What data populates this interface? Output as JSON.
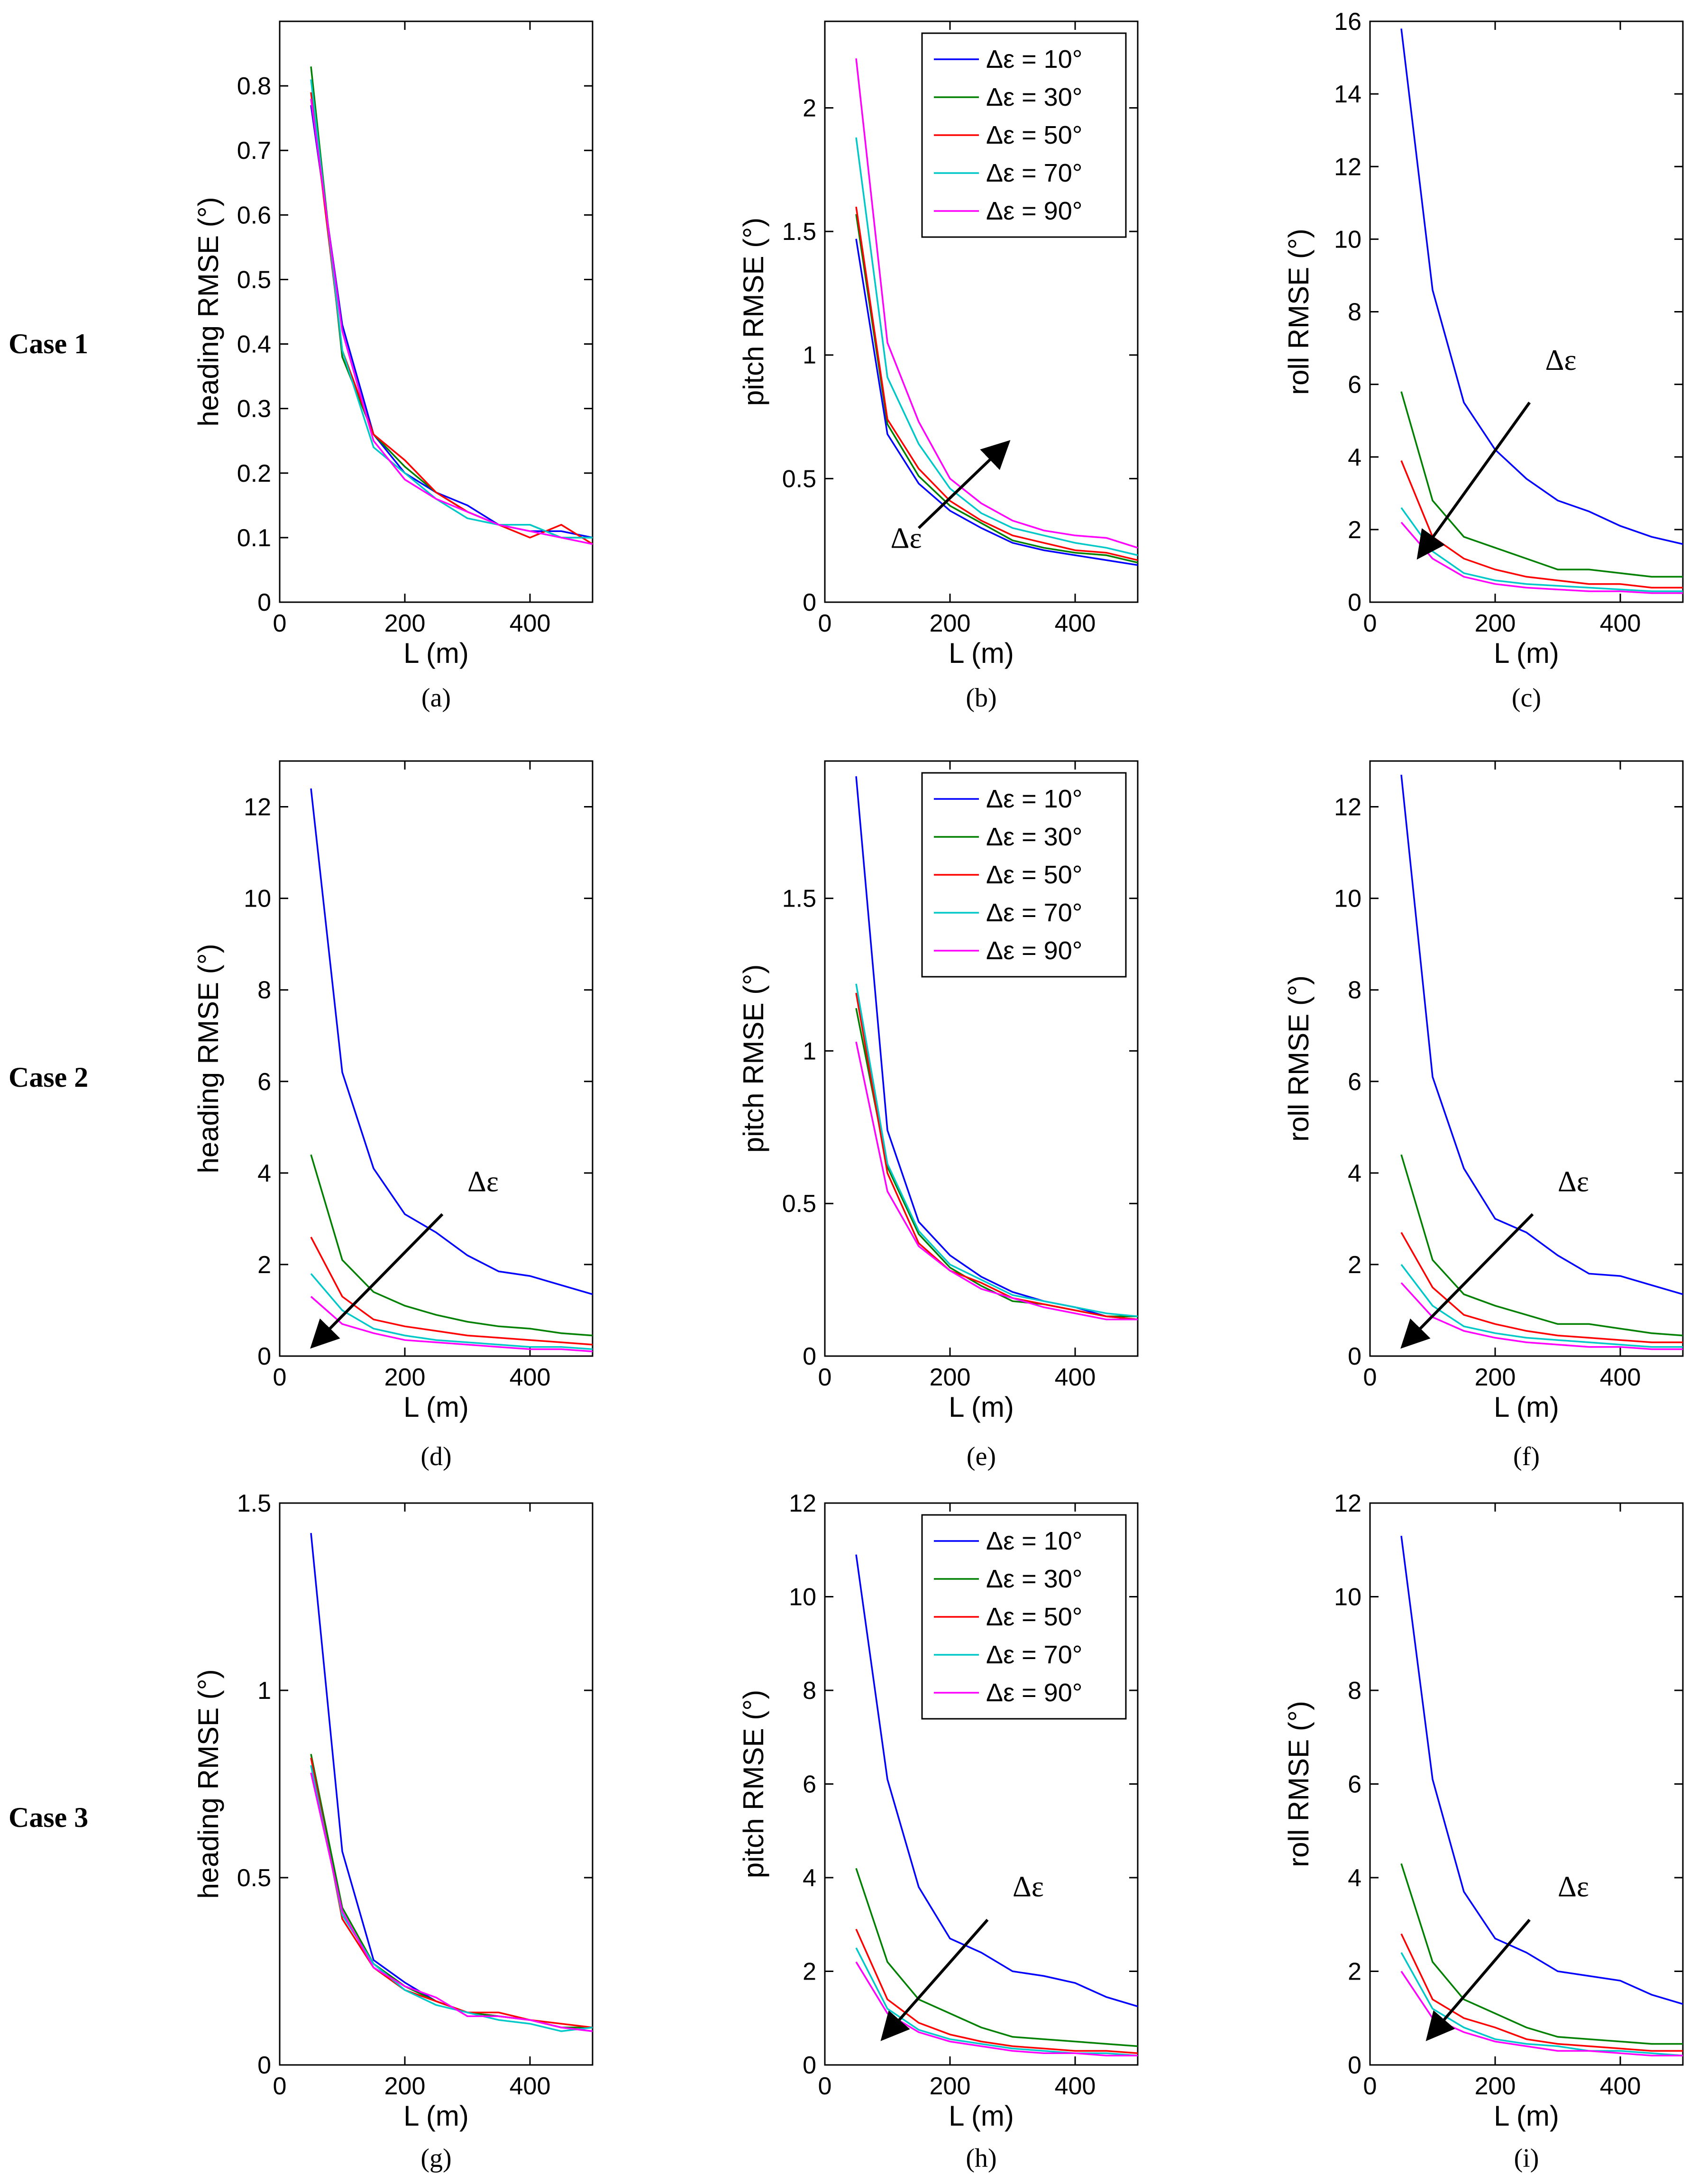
{
  "figure": {
    "case_labels": [
      "Case 1",
      "Case 2",
      "Case 3"
    ],
    "legend_labels": [
      "Δε = 10°",
      "Δε = 30°",
      "Δε = 50°",
      "Δε = 70°",
      "Δε = 90°"
    ],
    "arrow_label": "Δε"
  },
  "colors": {
    "s10": "#0000ff",
    "s30": "#008000",
    "s50": "#ff0000",
    "s70": "#00c8c8",
    "s90": "#ff00ff"
  },
  "chart_data": [
    {
      "id": "a",
      "panel_label": "(a)",
      "type": "line",
      "xlabel": "L (m)",
      "ylabel": "heading RMSE (°)",
      "xlim": [
        0,
        500
      ],
      "ylim": [
        0,
        0.9
      ],
      "xticks": [
        0,
        200,
        400
      ],
      "yticks": [
        0,
        0.1,
        0.2,
        0.3,
        0.4,
        0.5,
        0.6,
        0.7,
        0.8
      ],
      "ytick_labels": [
        "0",
        "0.1",
        "0.2",
        "0.3",
        "0.4",
        "0.5",
        "0.6",
        "0.7",
        "0.8"
      ],
      "x": [
        50,
        100,
        150,
        200,
        250,
        300,
        350,
        400,
        450,
        500
      ],
      "series": [
        {
          "name": "Δε = 10°",
          "values": [
            0.77,
            0.43,
            0.26,
            0.2,
            0.17,
            0.15,
            0.12,
            0.11,
            0.11,
            0.1
          ]
        },
        {
          "name": "Δε = 30°",
          "values": [
            0.83,
            0.38,
            0.26,
            0.21,
            0.17,
            0.14,
            0.12,
            0.12,
            0.1,
            0.1
          ]
        },
        {
          "name": "Δε = 50°",
          "values": [
            0.79,
            0.39,
            0.26,
            0.22,
            0.17,
            0.14,
            0.12,
            0.1,
            0.12,
            0.09
          ]
        },
        {
          "name": "Δε = 70°",
          "values": [
            0.81,
            0.39,
            0.24,
            0.2,
            0.16,
            0.13,
            0.12,
            0.12,
            0.1,
            0.1
          ]
        },
        {
          "name": "Δε = 90°",
          "values": [
            0.78,
            0.42,
            0.25,
            0.19,
            0.16,
            0.14,
            0.12,
            0.11,
            0.1,
            0.09
          ]
        }
      ],
      "legend": false,
      "arrow": null
    },
    {
      "id": "b",
      "panel_label": "(b)",
      "type": "line",
      "xlabel": "L (m)",
      "ylabel": "pitch RMSE (°)",
      "xlim": [
        0,
        500
      ],
      "ylim": [
        0,
        2.35
      ],
      "xticks": [
        0,
        200,
        400
      ],
      "yticks": [
        0,
        0.5,
        1,
        1.5,
        2
      ],
      "ytick_labels": [
        "0",
        "0.5",
        "1",
        "1.5",
        "2"
      ],
      "x": [
        50,
        100,
        150,
        200,
        250,
        300,
        350,
        400,
        450,
        500
      ],
      "series": [
        {
          "name": "Δε = 10°",
          "values": [
            1.47,
            0.68,
            0.48,
            0.37,
            0.3,
            0.24,
            0.21,
            0.19,
            0.17,
            0.15
          ]
        },
        {
          "name": "Δε = 30°",
          "values": [
            1.57,
            0.72,
            0.51,
            0.39,
            0.32,
            0.25,
            0.22,
            0.2,
            0.19,
            0.16
          ]
        },
        {
          "name": "Δε = 50°",
          "values": [
            1.6,
            0.74,
            0.54,
            0.41,
            0.33,
            0.27,
            0.24,
            0.21,
            0.2,
            0.17
          ]
        },
        {
          "name": "Δε = 70°",
          "values": [
            1.88,
            0.91,
            0.64,
            0.46,
            0.36,
            0.3,
            0.27,
            0.24,
            0.22,
            0.19
          ]
        },
        {
          "name": "Δε = 90°",
          "values": [
            2.2,
            1.05,
            0.73,
            0.5,
            0.4,
            0.33,
            0.29,
            0.27,
            0.26,
            0.22
          ]
        }
      ],
      "legend": "top-right",
      "arrow": {
        "from": [
          150,
          0.3
        ],
        "to": [
          290,
          0.64
        ],
        "label_at": [
          105,
          0.22
        ]
      }
    },
    {
      "id": "c",
      "panel_label": "(c)",
      "type": "line",
      "xlabel": "L (m)",
      "ylabel": "roll RMSE (°)",
      "xlim": [
        0,
        500
      ],
      "ylim": [
        0,
        16
      ],
      "xticks": [
        0,
        200,
        400
      ],
      "yticks": [
        0,
        2,
        4,
        6,
        8,
        10,
        12,
        14,
        16
      ],
      "ytick_labels": [
        "0",
        "2",
        "4",
        "6",
        "8",
        "10",
        "12",
        "14",
        "16"
      ],
      "x": [
        50,
        100,
        150,
        200,
        250,
        300,
        350,
        400,
        450,
        500
      ],
      "series": [
        {
          "name": "Δε = 10°",
          "values": [
            15.8,
            8.6,
            5.5,
            4.2,
            3.4,
            2.8,
            2.5,
            2.1,
            1.8,
            1.6
          ]
        },
        {
          "name": "Δε = 30°",
          "values": [
            5.8,
            2.8,
            1.8,
            1.5,
            1.2,
            0.9,
            0.9,
            0.8,
            0.7,
            0.7
          ]
        },
        {
          "name": "Δε = 50°",
          "values": [
            3.9,
            1.8,
            1.2,
            0.9,
            0.7,
            0.6,
            0.5,
            0.5,
            0.4,
            0.4
          ]
        },
        {
          "name": "Δε = 70°",
          "values": [
            2.6,
            1.4,
            0.8,
            0.6,
            0.5,
            0.45,
            0.4,
            0.35,
            0.3,
            0.3
          ]
        },
        {
          "name": "Δε = 90°",
          "values": [
            2.2,
            1.2,
            0.7,
            0.5,
            0.4,
            0.35,
            0.3,
            0.3,
            0.25,
            0.25
          ]
        }
      ],
      "legend": false,
      "arrow": {
        "from": [
          255,
          5.5
        ],
        "to": [
          80,
          1.3
        ],
        "label_at": [
          280,
          6.4
        ]
      }
    },
    {
      "id": "d",
      "panel_label": "(d)",
      "type": "line",
      "xlabel": "L (m)",
      "ylabel": "heading RMSE (°)",
      "xlim": [
        0,
        500
      ],
      "ylim": [
        0,
        13
      ],
      "xticks": [
        0,
        200,
        400
      ],
      "yticks": [
        0,
        2,
        4,
        6,
        8,
        10,
        12
      ],
      "ytick_labels": [
        "0",
        "2",
        "4",
        "6",
        "8",
        "10",
        "12"
      ],
      "x": [
        50,
        100,
        150,
        200,
        250,
        300,
        350,
        400,
        450,
        500
      ],
      "series": [
        {
          "name": "Δε = 10°",
          "values": [
            12.4,
            6.2,
            4.1,
            3.1,
            2.7,
            2.2,
            1.85,
            1.75,
            1.55,
            1.35
          ]
        },
        {
          "name": "Δε = 30°",
          "values": [
            4.4,
            2.1,
            1.4,
            1.1,
            0.9,
            0.75,
            0.65,
            0.6,
            0.5,
            0.45
          ]
        },
        {
          "name": "Δε = 50°",
          "values": [
            2.6,
            1.3,
            0.8,
            0.65,
            0.55,
            0.45,
            0.4,
            0.35,
            0.3,
            0.25
          ]
        },
        {
          "name": "Δε = 70°",
          "values": [
            1.8,
            1.0,
            0.6,
            0.45,
            0.35,
            0.3,
            0.25,
            0.2,
            0.2,
            0.15
          ]
        },
        {
          "name": "Δε = 90°",
          "values": [
            1.3,
            0.7,
            0.5,
            0.35,
            0.3,
            0.25,
            0.2,
            0.15,
            0.15,
            0.1
          ]
        }
      ],
      "legend": false,
      "arrow": {
        "from": [
          260,
          3.1
        ],
        "to": [
          55,
          0.25
        ],
        "label_at": [
          300,
          3.6
        ]
      }
    },
    {
      "id": "e",
      "panel_label": "(e)",
      "type": "line",
      "xlabel": "L (m)",
      "ylabel": "pitch RMSE (°)",
      "xlim": [
        0,
        500
      ],
      "ylim": [
        0,
        1.95
      ],
      "xticks": [
        0,
        200,
        400
      ],
      "yticks": [
        0,
        0.5,
        1,
        1.5
      ],
      "ytick_labels": [
        "0",
        "0.5",
        "1",
        "1.5"
      ],
      "x": [
        50,
        100,
        150,
        200,
        250,
        300,
        350,
        400,
        450,
        500
      ],
      "series": [
        {
          "name": "Δε = 10°",
          "values": [
            1.9,
            0.74,
            0.44,
            0.33,
            0.26,
            0.21,
            0.18,
            0.16,
            0.13,
            0.12
          ]
        },
        {
          "name": "Δε = 30°",
          "values": [
            1.14,
            0.62,
            0.4,
            0.29,
            0.23,
            0.18,
            0.17,
            0.15,
            0.13,
            0.13
          ]
        },
        {
          "name": "Δε = 50°",
          "values": [
            1.19,
            0.6,
            0.37,
            0.28,
            0.24,
            0.19,
            0.17,
            0.15,
            0.13,
            0.12
          ]
        },
        {
          "name": "Δε = 70°",
          "values": [
            1.22,
            0.63,
            0.41,
            0.3,
            0.25,
            0.2,
            0.18,
            0.16,
            0.14,
            0.13
          ]
        },
        {
          "name": "Δε = 90°",
          "values": [
            1.03,
            0.54,
            0.36,
            0.28,
            0.22,
            0.19,
            0.16,
            0.14,
            0.12,
            0.12
          ]
        }
      ],
      "legend": "top-right",
      "arrow": null
    },
    {
      "id": "f",
      "panel_label": "(f)",
      "type": "line",
      "xlabel": "L (m)",
      "ylabel": "roll RMSE (°)",
      "xlim": [
        0,
        500
      ],
      "ylim": [
        0,
        13
      ],
      "xticks": [
        0,
        200,
        400
      ],
      "yticks": [
        0,
        2,
        4,
        6,
        8,
        10,
        12
      ],
      "ytick_labels": [
        "0",
        "2",
        "4",
        "6",
        "8",
        "10",
        "12"
      ],
      "x": [
        50,
        100,
        150,
        200,
        250,
        300,
        350,
        400,
        450,
        500
      ],
      "series": [
        {
          "name": "Δε = 10°",
          "values": [
            12.7,
            6.1,
            4.1,
            3.0,
            2.7,
            2.2,
            1.8,
            1.75,
            1.55,
            1.35
          ]
        },
        {
          "name": "Δε = 30°",
          "values": [
            4.4,
            2.1,
            1.35,
            1.1,
            0.9,
            0.7,
            0.7,
            0.6,
            0.5,
            0.45
          ]
        },
        {
          "name": "Δε = 50°",
          "values": [
            2.7,
            1.5,
            0.9,
            0.7,
            0.55,
            0.45,
            0.4,
            0.35,
            0.3,
            0.3
          ]
        },
        {
          "name": "Δε = 70°",
          "values": [
            2.0,
            1.1,
            0.65,
            0.5,
            0.4,
            0.35,
            0.3,
            0.25,
            0.2,
            0.2
          ]
        },
        {
          "name": "Δε = 90°",
          "values": [
            1.6,
            0.85,
            0.55,
            0.4,
            0.3,
            0.25,
            0.2,
            0.2,
            0.15,
            0.15
          ]
        }
      ],
      "legend": false,
      "arrow": {
        "from": [
          260,
          3.1
        ],
        "to": [
          55,
          0.25
        ],
        "label_at": [
          300,
          3.6
        ]
      }
    },
    {
      "id": "g",
      "panel_label": "(g)",
      "type": "line",
      "xlabel": "L (m)",
      "ylabel": "heading RMSE (°)",
      "xlim": [
        0,
        500
      ],
      "ylim": [
        0,
        1.5
      ],
      "xticks": [
        0,
        200,
        400
      ],
      "yticks": [
        0,
        0.5,
        1,
        1.5
      ],
      "ytick_labels": [
        "0",
        "0.5",
        "1",
        "1.5"
      ],
      "x": [
        50,
        100,
        150,
        200,
        250,
        300,
        350,
        400,
        450,
        500
      ],
      "series": [
        {
          "name": "Δε = 10°",
          "values": [
            1.42,
            0.57,
            0.28,
            0.22,
            0.17,
            0.14,
            0.13,
            0.12,
            0.1,
            0.09
          ]
        },
        {
          "name": "Δε = 30°",
          "values": [
            0.83,
            0.42,
            0.27,
            0.21,
            0.17,
            0.14,
            0.13,
            0.12,
            0.1,
            0.1
          ]
        },
        {
          "name": "Δε = 50°",
          "values": [
            0.82,
            0.39,
            0.26,
            0.2,
            0.17,
            0.14,
            0.14,
            0.12,
            0.11,
            0.1
          ]
        },
        {
          "name": "Δε = 70°",
          "values": [
            0.8,
            0.4,
            0.27,
            0.2,
            0.16,
            0.14,
            0.12,
            0.11,
            0.09,
            0.1
          ]
        },
        {
          "name": "Δε = 90°",
          "values": [
            0.78,
            0.41,
            0.26,
            0.21,
            0.18,
            0.13,
            0.13,
            0.12,
            0.1,
            0.09
          ]
        }
      ],
      "legend": false,
      "arrow": null
    },
    {
      "id": "h",
      "panel_label": "(h)",
      "type": "line",
      "xlabel": "L (m)",
      "ylabel": "pitch RMSE (°)",
      "xlim": [
        0,
        500
      ],
      "ylim": [
        0,
        12
      ],
      "xticks": [
        0,
        200,
        400
      ],
      "yticks": [
        0,
        2,
        4,
        6,
        8,
        10,
        12
      ],
      "ytick_labels": [
        "0",
        "2",
        "4",
        "6",
        "8",
        "10",
        "12"
      ],
      "x": [
        50,
        100,
        150,
        200,
        250,
        300,
        350,
        400,
        450,
        500
      ],
      "series": [
        {
          "name": "Δε = 10°",
          "values": [
            10.9,
            6.1,
            3.8,
            2.7,
            2.4,
            2.0,
            1.9,
            1.75,
            1.45,
            1.25
          ]
        },
        {
          "name": "Δε = 30°",
          "values": [
            4.2,
            2.2,
            1.4,
            1.1,
            0.8,
            0.6,
            0.55,
            0.5,
            0.45,
            0.4
          ]
        },
        {
          "name": "Δε = 50°",
          "values": [
            2.9,
            1.4,
            0.9,
            0.65,
            0.5,
            0.4,
            0.35,
            0.3,
            0.3,
            0.25
          ]
        },
        {
          "name": "Δε = 70°",
          "values": [
            2.5,
            1.2,
            0.75,
            0.55,
            0.45,
            0.35,
            0.3,
            0.25,
            0.25,
            0.2
          ]
        },
        {
          "name": "Δε = 90°",
          "values": [
            2.2,
            1.1,
            0.7,
            0.5,
            0.4,
            0.3,
            0.25,
            0.25,
            0.2,
            0.2
          ]
        }
      ],
      "legend": "top-right",
      "arrow": {
        "from": [
          260,
          3.1
        ],
        "to": [
          95,
          0.6
        ],
        "label_at": [
          300,
          3.6
        ]
      }
    },
    {
      "id": "i",
      "panel_label": "(i)",
      "type": "line",
      "xlabel": "L (m)",
      "ylabel": "roll RMSE (°)",
      "xlim": [
        0,
        500
      ],
      "ylim": [
        0,
        12
      ],
      "xticks": [
        0,
        200,
        400
      ],
      "yticks": [
        0,
        2,
        4,
        6,
        8,
        10,
        12
      ],
      "ytick_labels": [
        "0",
        "2",
        "4",
        "6",
        "8",
        "10",
        "12"
      ],
      "x": [
        50,
        100,
        150,
        200,
        250,
        300,
        350,
        400,
        450,
        500
      ],
      "series": [
        {
          "name": "Δε = 10°",
          "values": [
            11.3,
            6.1,
            3.7,
            2.7,
            2.4,
            2.0,
            1.9,
            1.8,
            1.5,
            1.3
          ]
        },
        {
          "name": "Δε = 30°",
          "values": [
            4.3,
            2.2,
            1.4,
            1.1,
            0.8,
            0.6,
            0.55,
            0.5,
            0.45,
            0.45
          ]
        },
        {
          "name": "Δε = 50°",
          "values": [
            2.8,
            1.4,
            1.0,
            0.8,
            0.55,
            0.45,
            0.4,
            0.35,
            0.3,
            0.3
          ]
        },
        {
          "name": "Δε = 70°",
          "values": [
            2.4,
            1.2,
            0.8,
            0.55,
            0.45,
            0.4,
            0.3,
            0.3,
            0.25,
            0.2
          ]
        },
        {
          "name": "Δε = 90°",
          "values": [
            2.0,
            1.0,
            0.7,
            0.5,
            0.4,
            0.3,
            0.3,
            0.25,
            0.2,
            0.2
          ]
        }
      ],
      "legend": false,
      "arrow": {
        "from": [
          255,
          3.1
        ],
        "to": [
          95,
          0.6
        ],
        "label_at": [
          300,
          3.6
        ]
      }
    }
  ]
}
